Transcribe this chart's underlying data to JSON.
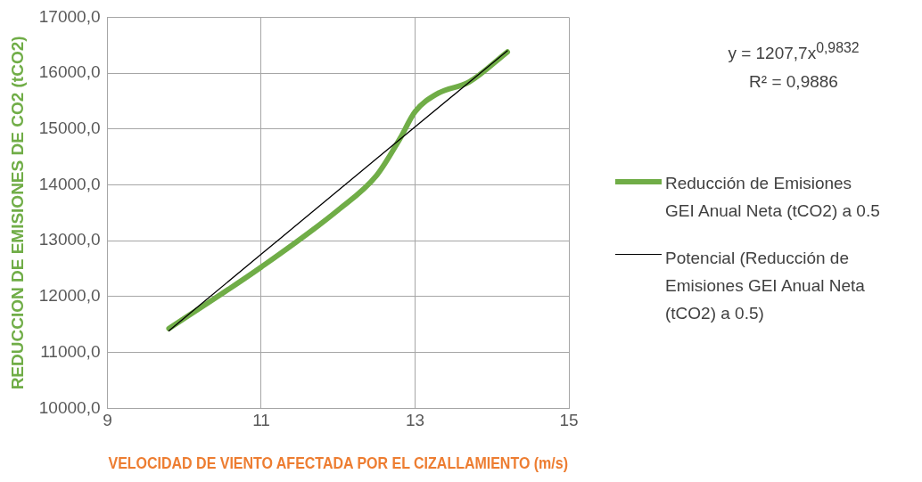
{
  "chart_data": {
    "type": "line",
    "xlabel": "VELOCIDAD DE VIENTO AFECTADA POR EL CIZALLAMIENTO (m/s)",
    "ylabel": "REDUCCION DE EMISIONES DE CO2 (tCO2)",
    "xlim": [
      9,
      15
    ],
    "xticks": [
      9,
      11,
      13,
      15
    ],
    "ylim": [
      10000,
      17000
    ],
    "yticks": [
      {
        "value": 10000,
        "label": "10000,0"
      },
      {
        "value": 11000,
        "label": "11000,0"
      },
      {
        "value": 12000,
        "label": "12000,0"
      },
      {
        "value": 13000,
        "label": "13000,0"
      },
      {
        "value": 14000,
        "label": "14000,0"
      },
      {
        "value": 15000,
        "label": "15000,0"
      },
      {
        "value": 16000,
        "label": "16000,0"
      },
      {
        "value": 17000,
        "label": "17000,0"
      }
    ],
    "grid": true,
    "legend": "right",
    "marker": "none",
    "series": [
      {
        "name": "Reducción de Emisiones GEI Anual Neta (tCO2) a 0.5",
        "color": "#70ad47",
        "x": [
          9.8,
          11,
          12,
          12.5,
          12.8,
          13,
          13.3,
          13.7,
          14.2
        ],
        "values": [
          11430,
          12530,
          13550,
          14170,
          14820,
          15310,
          15640,
          15840,
          16380
        ]
      },
      {
        "name": "Potencial (Reducción de Emisiones GEI Anual Neta (tCO2) a 0.5)",
        "color": "#000000",
        "x": [
          9.8,
          11,
          12.5,
          14.2
        ],
        "values": [
          11390,
          12760,
          14470,
          16400
        ]
      }
    ],
    "annotations": [
      "y = 1207,7x$^{0,9832}$",
      "R² = 0,9886"
    ]
  }
}
